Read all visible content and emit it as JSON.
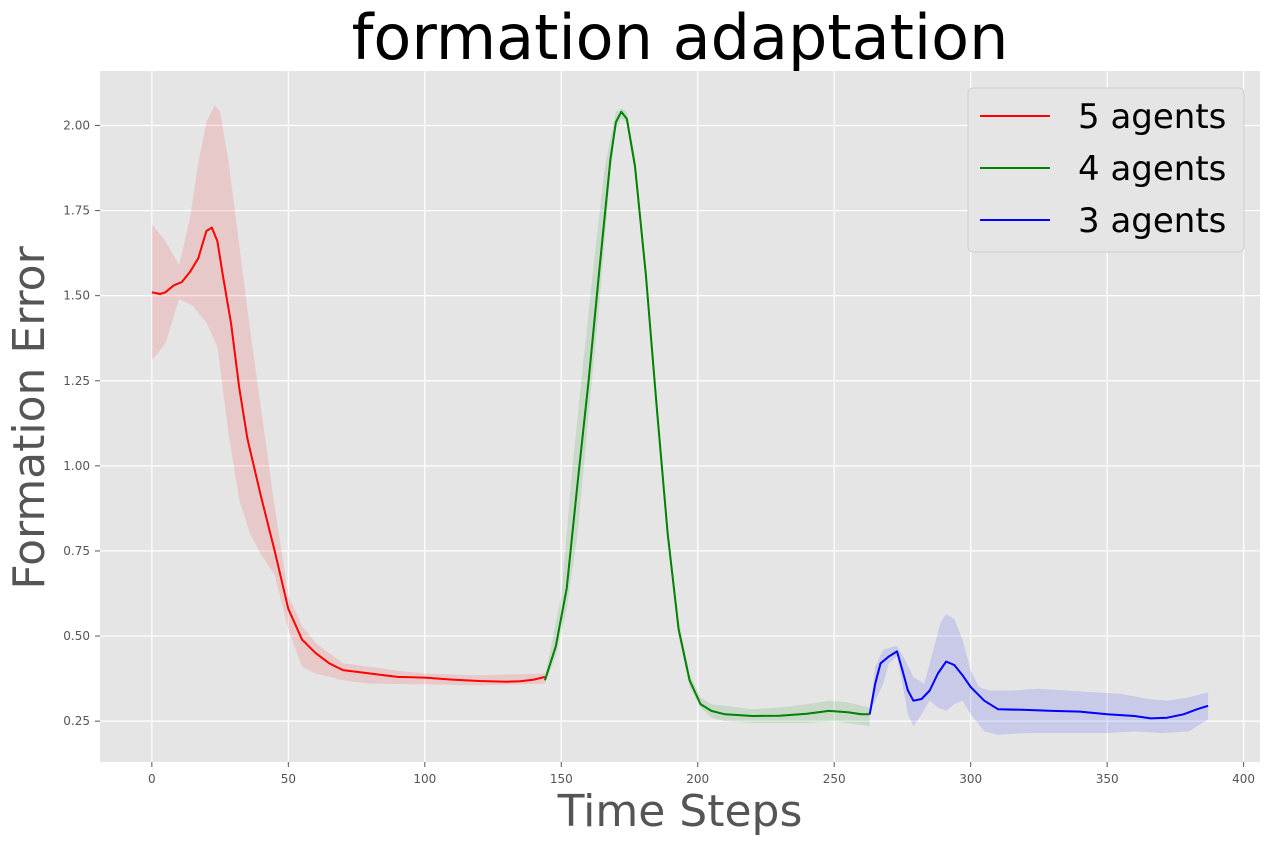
{
  "chart_data": {
    "type": "line",
    "title": "formation adaptation",
    "xlabel": "Time Steps",
    "ylabel": "Formation Error",
    "xlim": [
      -19,
      406
    ],
    "ylim": [
      0.13,
      2.16
    ],
    "x_ticks": [
      0,
      50,
      100,
      150,
      200,
      250,
      300,
      350,
      400
    ],
    "y_ticks": [
      0.25,
      0.5,
      0.75,
      1.0,
      1.25,
      1.5,
      1.75,
      2.0
    ],
    "y_tick_labels": [
      "0.25",
      "0.50",
      "0.75",
      "1.00",
      "1.25",
      "1.50",
      "1.75",
      "2.00"
    ],
    "grid": true,
    "background": "#e5e5e5",
    "legend_position": "upper right",
    "series": [
      {
        "name": "5 agents",
        "color": "#ff0000",
        "band_color": "#ff0000",
        "points": [
          [
            0,
            1.51
          ],
          [
            3,
            1.505
          ],
          [
            5,
            1.51
          ],
          [
            8,
            1.53
          ],
          [
            11,
            1.54
          ],
          [
            14,
            1.57
          ],
          [
            17,
            1.61
          ],
          [
            20,
            1.69
          ],
          [
            22,
            1.7
          ],
          [
            24,
            1.66
          ],
          [
            26,
            1.56
          ],
          [
            29,
            1.42
          ],
          [
            32,
            1.23
          ],
          [
            35,
            1.08
          ],
          [
            40,
            0.91
          ],
          [
            45,
            0.75
          ],
          [
            50,
            0.58
          ],
          [
            55,
            0.49
          ],
          [
            60,
            0.45
          ],
          [
            65,
            0.42
          ],
          [
            70,
            0.4
          ],
          [
            80,
            0.39
          ],
          [
            90,
            0.38
          ],
          [
            100,
            0.378
          ],
          [
            110,
            0.372
          ],
          [
            120,
            0.368
          ],
          [
            130,
            0.366
          ],
          [
            135,
            0.367
          ],
          [
            140,
            0.372
          ],
          [
            144,
            0.38
          ]
        ],
        "upper": [
          [
            0,
            1.71
          ],
          [
            5,
            1.66
          ],
          [
            10,
            1.59
          ],
          [
            14,
            1.73
          ],
          [
            17,
            1.89
          ],
          [
            20,
            2.01
          ],
          [
            23,
            2.06
          ],
          [
            25,
            2.04
          ],
          [
            28,
            1.9
          ],
          [
            32,
            1.65
          ],
          [
            36,
            1.4
          ],
          [
            40,
            1.17
          ],
          [
            45,
            0.88
          ],
          [
            50,
            0.62
          ],
          [
            55,
            0.53
          ],
          [
            60,
            0.48
          ],
          [
            70,
            0.42
          ],
          [
            80,
            0.41
          ],
          [
            90,
            0.398
          ],
          [
            100,
            0.39
          ],
          [
            120,
            0.385
          ],
          [
            144,
            0.39
          ]
        ],
        "lower": [
          [
            0,
            1.31
          ],
          [
            5,
            1.36
          ],
          [
            10,
            1.49
          ],
          [
            15,
            1.47
          ],
          [
            20,
            1.42
          ],
          [
            24,
            1.35
          ],
          [
            28,
            1.1
          ],
          [
            32,
            0.9
          ],
          [
            36,
            0.8
          ],
          [
            40,
            0.74
          ],
          [
            45,
            0.68
          ],
          [
            50,
            0.52
          ],
          [
            55,
            0.41
          ],
          [
            60,
            0.39
          ],
          [
            70,
            0.37
          ],
          [
            80,
            0.36
          ],
          [
            100,
            0.358
          ],
          [
            120,
            0.355
          ],
          [
            144,
            0.36
          ]
        ]
      },
      {
        "name": "4 agents",
        "color": "#008000",
        "band_color": "#008000",
        "points": [
          [
            144,
            0.37
          ],
          [
            148,
            0.47
          ],
          [
            152,
            0.64
          ],
          [
            156,
            0.95
          ],
          [
            160,
            1.25
          ],
          [
            164,
            1.58
          ],
          [
            168,
            1.9
          ],
          [
            170,
            2.01
          ],
          [
            172,
            2.04
          ],
          [
            174,
            2.02
          ],
          [
            177,
            1.88
          ],
          [
            181,
            1.56
          ],
          [
            185,
            1.17
          ],
          [
            189,
            0.8
          ],
          [
            193,
            0.52
          ],
          [
            197,
            0.37
          ],
          [
            201,
            0.3
          ],
          [
            205,
            0.28
          ],
          [
            210,
            0.27
          ],
          [
            220,
            0.265
          ],
          [
            230,
            0.266
          ],
          [
            240,
            0.272
          ],
          [
            248,
            0.28
          ],
          [
            255,
            0.276
          ],
          [
            260,
            0.27
          ],
          [
            263,
            0.27
          ]
        ],
        "upper": [
          [
            144,
            0.38
          ],
          [
            150,
            0.62
          ],
          [
            154,
            0.99
          ],
          [
            158,
            1.3
          ],
          [
            162,
            1.6
          ],
          [
            166,
            1.88
          ],
          [
            170,
            2.04
          ],
          [
            172,
            2.05
          ],
          [
            174,
            2.04
          ],
          [
            177,
            1.91
          ],
          [
            181,
            1.59
          ],
          [
            185,
            1.19
          ],
          [
            189,
            0.82
          ],
          [
            193,
            0.55
          ],
          [
            197,
            0.39
          ],
          [
            201,
            0.32
          ],
          [
            205,
            0.3
          ],
          [
            210,
            0.295
          ],
          [
            220,
            0.285
          ],
          [
            230,
            0.29
          ],
          [
            240,
            0.3
          ],
          [
            248,
            0.31
          ],
          [
            255,
            0.305
          ],
          [
            263,
            0.29
          ]
        ],
        "lower": [
          [
            144,
            0.36
          ],
          [
            148,
            0.44
          ],
          [
            152,
            0.58
          ],
          [
            156,
            0.8
          ],
          [
            160,
            1.15
          ],
          [
            164,
            1.48
          ],
          [
            168,
            1.86
          ],
          [
            170,
            1.99
          ],
          [
            172,
            2.02
          ],
          [
            174,
            2.01
          ],
          [
            177,
            1.86
          ],
          [
            181,
            1.54
          ],
          [
            185,
            1.15
          ],
          [
            189,
            0.78
          ],
          [
            193,
            0.5
          ],
          [
            197,
            0.35
          ],
          [
            201,
            0.29
          ],
          [
            205,
            0.26
          ],
          [
            210,
            0.25
          ],
          [
            220,
            0.245
          ],
          [
            230,
            0.245
          ],
          [
            240,
            0.245
          ],
          [
            250,
            0.25
          ],
          [
            263,
            0.235
          ]
        ]
      },
      {
        "name": "3 agents",
        "color": "#0000ff",
        "band_color": "#0000ff",
        "points": [
          [
            263,
            0.27
          ],
          [
            265,
            0.36
          ],
          [
            267,
            0.42
          ],
          [
            270,
            0.44
          ],
          [
            273,
            0.455
          ],
          [
            275,
            0.4
          ],
          [
            277,
            0.34
          ],
          [
            279,
            0.31
          ],
          [
            282,
            0.315
          ],
          [
            285,
            0.34
          ],
          [
            288,
            0.39
          ],
          [
            291,
            0.425
          ],
          [
            294,
            0.415
          ],
          [
            297,
            0.385
          ],
          [
            300,
            0.35
          ],
          [
            305,
            0.31
          ],
          [
            310,
            0.285
          ],
          [
            320,
            0.283
          ],
          [
            330,
            0.28
          ],
          [
            340,
            0.278
          ],
          [
            350,
            0.27
          ],
          [
            360,
            0.265
          ],
          [
            366,
            0.258
          ],
          [
            372,
            0.26
          ],
          [
            378,
            0.27
          ],
          [
            383,
            0.285
          ],
          [
            387,
            0.295
          ]
        ],
        "upper": [
          [
            263,
            0.27
          ],
          [
            265,
            0.41
          ],
          [
            268,
            0.46
          ],
          [
            272,
            0.47
          ],
          [
            273,
            0.47
          ],
          [
            276,
            0.43
          ],
          [
            279,
            0.38
          ],
          [
            283,
            0.36
          ],
          [
            286,
            0.45
          ],
          [
            289,
            0.54
          ],
          [
            291,
            0.565
          ],
          [
            294,
            0.55
          ],
          [
            297,
            0.49
          ],
          [
            300,
            0.4
          ],
          [
            303,
            0.35
          ],
          [
            307,
            0.34
          ],
          [
            315,
            0.34
          ],
          [
            325,
            0.345
          ],
          [
            335,
            0.34
          ],
          [
            345,
            0.335
          ],
          [
            355,
            0.33
          ],
          [
            365,
            0.315
          ],
          [
            372,
            0.31
          ],
          [
            380,
            0.32
          ],
          [
            387,
            0.335
          ]
        ],
        "lower": [
          [
            263,
            0.27
          ],
          [
            265,
            0.31
          ],
          [
            268,
            0.36
          ],
          [
            270,
            0.42
          ],
          [
            273,
            0.44
          ],
          [
            275,
            0.36
          ],
          [
            277,
            0.27
          ],
          [
            279,
            0.235
          ],
          [
            282,
            0.27
          ],
          [
            285,
            0.31
          ],
          [
            288,
            0.29
          ],
          [
            291,
            0.28
          ],
          [
            294,
            0.3
          ],
          [
            297,
            0.31
          ],
          [
            300,
            0.27
          ],
          [
            305,
            0.22
          ],
          [
            310,
            0.21
          ],
          [
            320,
            0.215
          ],
          [
            330,
            0.215
          ],
          [
            340,
            0.215
          ],
          [
            350,
            0.215
          ],
          [
            360,
            0.22
          ],
          [
            370,
            0.215
          ],
          [
            380,
            0.22
          ],
          [
            387,
            0.255
          ]
        ]
      }
    ]
  }
}
